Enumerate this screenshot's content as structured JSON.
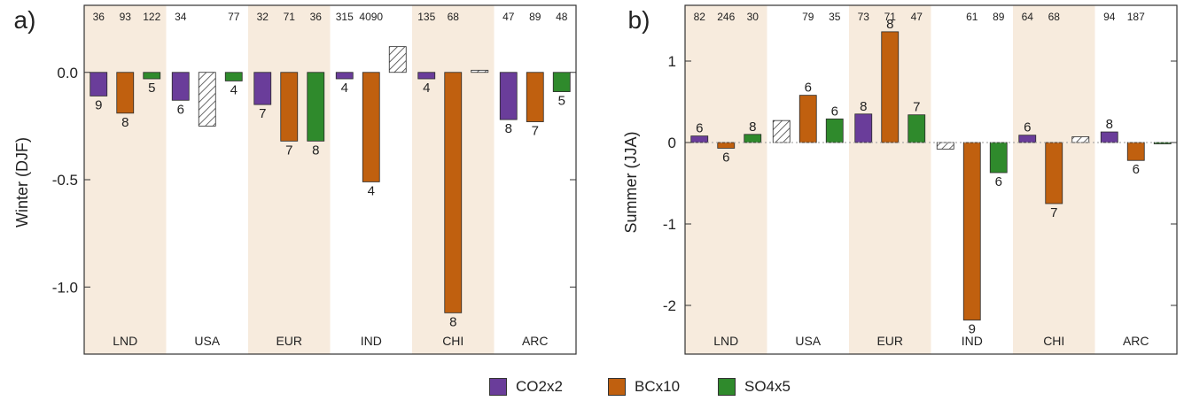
{
  "chart_data": [
    {
      "type": "bar",
      "panel_label": "a)",
      "ylabel": "Winter (DJF)",
      "ylim": [
        -1.3,
        0.3
      ],
      "yticks": [
        0.0,
        -0.5,
        -1.0
      ],
      "ytick_labels": [
        "0.0",
        "-0.5",
        "-1.0"
      ],
      "grid": "dotted horizontal",
      "categories": [
        "LND",
        "USA",
        "EUR",
        "IND",
        "CHI",
        "ARC"
      ],
      "shaded_categories": [
        "LND",
        "EUR",
        "CHI"
      ],
      "series": [
        {
          "name": "CO2x2",
          "values": [
            -0.11,
            -0.13,
            -0.15,
            -0.03,
            -0.03,
            -0.22
          ],
          "hatched": [
            false,
            false,
            false,
            false,
            false,
            false
          ],
          "bar_labels": [
            "9",
            "6",
            "7",
            "4",
            "4",
            "8"
          ],
          "top_labels": [
            "36",
            "34",
            "32",
            "315",
            "135",
            "47"
          ]
        },
        {
          "name": "BCx10",
          "values": [
            -0.19,
            -0.25,
            -0.32,
            -0.51,
            -1.12,
            -0.23
          ],
          "hatched": [
            false,
            true,
            false,
            false,
            false,
            false
          ],
          "bar_labels": [
            "8",
            "",
            "7",
            "4",
            "8",
            "7"
          ],
          "top_labels": [
            "93",
            "",
            "71",
            "4090",
            "68",
            "89"
          ]
        },
        {
          "name": "SO4x5",
          "values": [
            -0.03,
            -0.04,
            -0.32,
            0.12,
            0.01,
            -0.09
          ],
          "hatched": [
            false,
            false,
            false,
            true,
            true,
            false
          ],
          "bar_labels": [
            "5",
            "4",
            "8",
            "",
            "",
            "5"
          ],
          "top_labels": [
            "122",
            "77",
            "36",
            "",
            "",
            "48"
          ]
        }
      ]
    },
    {
      "type": "bar",
      "panel_label": "b)",
      "ylabel": "Summer (JJA)",
      "ylim": [
        -2.5,
        1.5
      ],
      "yticks": [
        1,
        0,
        -1,
        -2
      ],
      "ytick_labels": [
        "1",
        "0",
        "-1",
        "-2"
      ],
      "grid": "dotted horizontal",
      "categories": [
        "LND",
        "USA",
        "EUR",
        "IND",
        "CHI",
        "ARC"
      ],
      "shaded_categories": [
        "LND",
        "EUR",
        "CHI"
      ],
      "series": [
        {
          "name": "CO2x2",
          "values": [
            0.08,
            0.27,
            0.35,
            -0.08,
            0.09,
            0.13
          ],
          "hatched": [
            false,
            true,
            false,
            true,
            false,
            false
          ],
          "bar_labels": [
            "6",
            "",
            "8",
            "",
            "6",
            "8"
          ],
          "top_labels": [
            "82",
            "",
            "73",
            "",
            "64",
            "94"
          ]
        },
        {
          "name": "BCx10",
          "values": [
            -0.07,
            0.58,
            1.36,
            -2.18,
            -0.75,
            -0.22
          ],
          "hatched": [
            false,
            false,
            false,
            false,
            false,
            false
          ],
          "bar_labels": [
            "6",
            "6",
            "8",
            "9",
            "7",
            "6"
          ],
          "top_labels": [
            "246",
            "79",
            "71",
            "61",
            "68",
            "187"
          ]
        },
        {
          "name": "SO4x5",
          "values": [
            0.1,
            0.29,
            0.34,
            -0.37,
            0.07,
            -0.01
          ],
          "hatched": [
            false,
            false,
            false,
            false,
            true,
            false
          ],
          "bar_labels": [
            "8",
            "6",
            "7",
            "6",
            "",
            ""
          ],
          "top_labels": [
            "30",
            "35",
            "47",
            "89",
            "",
            ""
          ]
        }
      ]
    }
  ],
  "legend": [
    {
      "label": "CO2x2",
      "color": "#6a3d9a"
    },
    {
      "label": "BCx10",
      "color": "#c0600f"
    },
    {
      "label": "SO4x5",
      "color": "#2f8a2c"
    }
  ],
  "colors": {
    "shade": "#f7ebdd",
    "frame": "#333333",
    "grid": "#9a9a9a"
  }
}
